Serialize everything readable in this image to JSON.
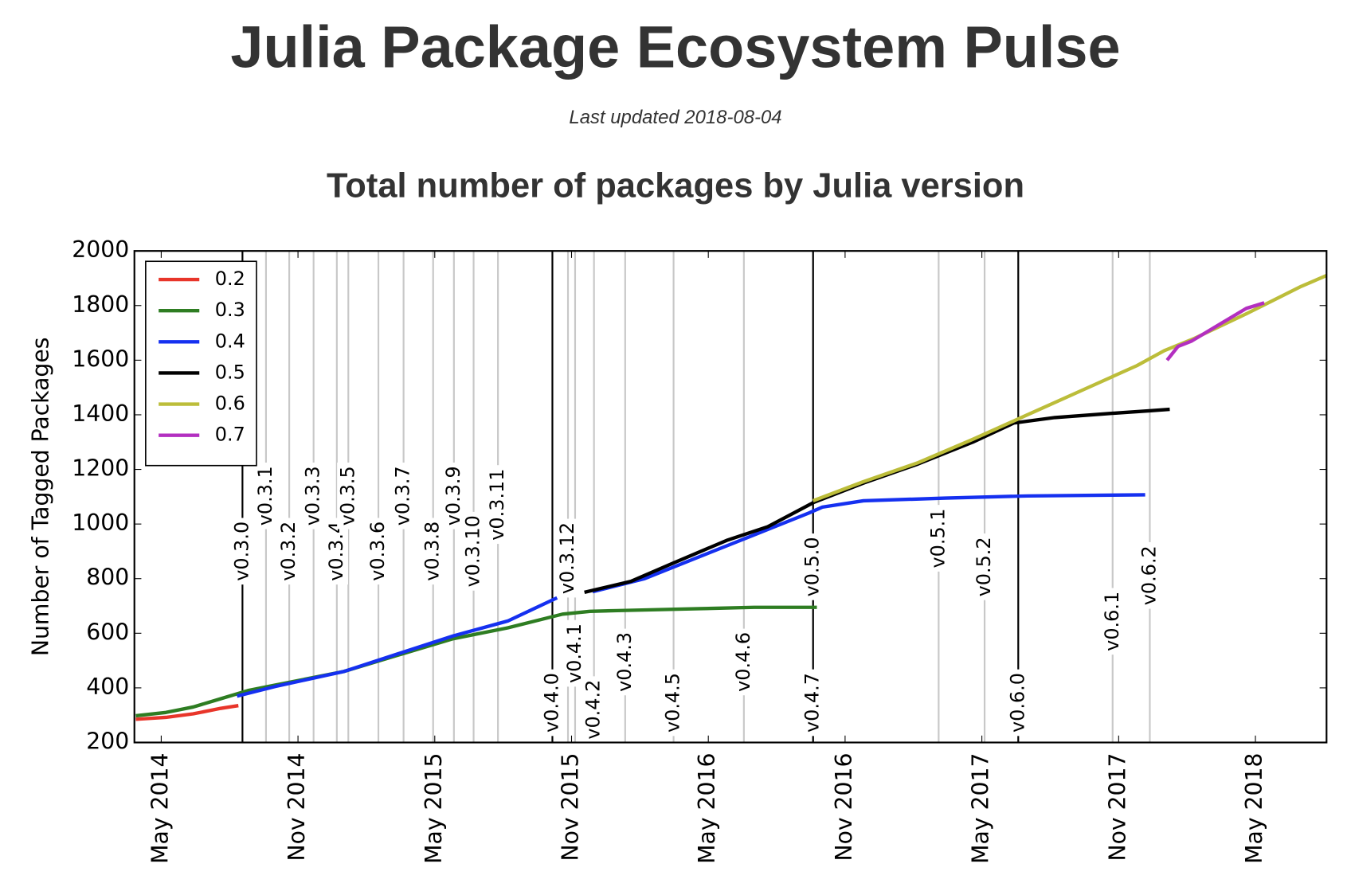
{
  "chart_data": {
    "type": "line",
    "title": "Julia Package Ecosystem Pulse",
    "subtitle": "Last updated 2018-08-04",
    "chart_title": "Total number of packages by Julia version",
    "y_label": "Number of Tagged Packages",
    "xlim": [
      2014.235,
      2018.593
    ],
    "xticks": [
      {
        "value": 2014.333,
        "label": "May 2014"
      },
      {
        "value": 2014.833,
        "label": "Nov 2014"
      },
      {
        "value": 2015.333,
        "label": "May 2015"
      },
      {
        "value": 2015.833,
        "label": "Nov 2015"
      },
      {
        "value": 2016.333,
        "label": "May 2016"
      },
      {
        "value": 2016.833,
        "label": "Nov 2016"
      },
      {
        "value": 2017.333,
        "label": "May 2017"
      },
      {
        "value": 2017.833,
        "label": "Nov 2017"
      },
      {
        "value": 2018.333,
        "label": "May 2018"
      }
    ],
    "ylim": [
      200,
      2000
    ],
    "yticks": [
      200,
      400,
      600,
      800,
      1000,
      1200,
      1400,
      1600,
      1800,
      2000
    ],
    "legend": "upper left",
    "series": [
      {
        "name": "0.2",
        "color": "#e8352a",
        "x": [
          2014.24,
          2014.35,
          2014.45,
          2014.55,
          2014.615
        ],
        "values": [
          285,
          292,
          305,
          325,
          335
        ]
      },
      {
        "name": "0.3",
        "color": "#2e7d22",
        "x": [
          2014.24,
          2014.35,
          2014.45,
          2014.55,
          2014.65,
          2014.75,
          2015.0,
          2015.2,
          2015.4,
          2015.6,
          2015.8,
          2015.9,
          2016.0,
          2016.3,
          2016.5,
          2016.73
        ],
        "values": [
          298,
          310,
          330,
          360,
          390,
          410,
          460,
          520,
          580,
          620,
          670,
          680,
          683,
          690,
          695,
          695
        ]
      },
      {
        "name": "0.4",
        "color": "#1530f0",
        "x": [
          2014.61,
          2014.75,
          2015.0,
          2015.2,
          2015.4,
          2015.6,
          2015.78,
          2015.85,
          2015.91,
          2016.1,
          2016.3,
          2016.5,
          2016.7,
          2016.75,
          2016.9,
          2017.2,
          2017.5,
          2017.93
        ],
        "values": [
          370,
          405,
          460,
          525,
          590,
          645,
          730,
          null,
          752,
          800,
          880,
          960,
          1040,
          1062,
          1085,
          1095,
          1103,
          1107
        ]
      },
      {
        "name": "0.5",
        "color": "#000000",
        "x": [
          2015.88,
          2016.05,
          2016.2,
          2016.4,
          2016.55,
          2016.72,
          2016.9,
          2017.1,
          2017.3,
          2017.45,
          2017.6,
          2017.8,
          2017.95,
          2018.02
        ],
        "values": [
          750,
          790,
          855,
          940,
          990,
          1080,
          1150,
          1220,
          1300,
          1370,
          1390,
          1405,
          1415,
          1420
        ]
      },
      {
        "name": "0.6",
        "color": "#bcbd3a",
        "x": [
          2016.716,
          2016.9,
          2017.1,
          2017.3,
          2017.5,
          2017.7,
          2017.9,
          2018.0,
          2018.11,
          2018.3,
          2018.5,
          2018.593
        ],
        "values": [
          1085,
          1155,
          1225,
          1310,
          1400,
          1490,
          1580,
          1635,
          1680,
          1770,
          1870,
          1910
        ]
      },
      {
        "name": "0.7",
        "color": "#b32fc0",
        "x": [
          2018.01,
          2018.05,
          2018.1,
          2018.2,
          2018.3,
          2018.365
        ],
        "values": [
          1600,
          1650,
          1670,
          1730,
          1790,
          1810
        ]
      }
    ],
    "releases": [
      {
        "label": "v0.3.0",
        "x": 2014.63,
        "major": true
      },
      {
        "label": "v0.3.1",
        "x": 2014.716,
        "major": false
      },
      {
        "label": "v0.3.2",
        "x": 2014.801,
        "major": false
      },
      {
        "label": "v0.3.3",
        "x": 2014.89,
        "major": false
      },
      {
        "label": "v0.3.4",
        "x": 2014.975,
        "major": false
      },
      {
        "label": "v0.3.5",
        "x": 2015.017,
        "major": false
      },
      {
        "label": "v0.3.6",
        "x": 2015.127,
        "major": false
      },
      {
        "label": "v0.3.7",
        "x": 2015.219,
        "major": false
      },
      {
        "label": "v0.3.8",
        "x": 2015.327,
        "major": false
      },
      {
        "label": "v0.3.9",
        "x": 2015.403,
        "major": false
      },
      {
        "label": "v0.3.10",
        "x": 2015.475,
        "major": false
      },
      {
        "label": "v0.3.11",
        "x": 2015.564,
        "major": false
      },
      {
        "label": "v0.3.12",
        "x": 2015.82,
        "major": false
      },
      {
        "label": "v0.4.0",
        "x": 2015.763,
        "major": true
      },
      {
        "label": "v0.4.1",
        "x": 2015.846,
        "major": false
      },
      {
        "label": "v0.4.2",
        "x": 2015.915,
        "major": false
      },
      {
        "label": "v0.4.3",
        "x": 2016.029,
        "major": false
      },
      {
        "label": "v0.4.5",
        "x": 2016.206,
        "major": false
      },
      {
        "label": "v0.4.6",
        "x": 2016.463,
        "major": false
      },
      {
        "label": "v0.4.7",
        "x": 2016.716,
        "major": false
      },
      {
        "label": "v0.5.0",
        "x": 2016.716,
        "major": true
      },
      {
        "label": "v0.5.1",
        "x": 2017.175,
        "major": false
      },
      {
        "label": "v0.5.2",
        "x": 2017.343,
        "major": false
      },
      {
        "label": "v0.6.0",
        "x": 2017.466,
        "major": true
      },
      {
        "label": "v0.6.1",
        "x": 2017.811,
        "major": false
      },
      {
        "label": "v0.6.2",
        "x": 2017.947,
        "major": false
      }
    ]
  }
}
